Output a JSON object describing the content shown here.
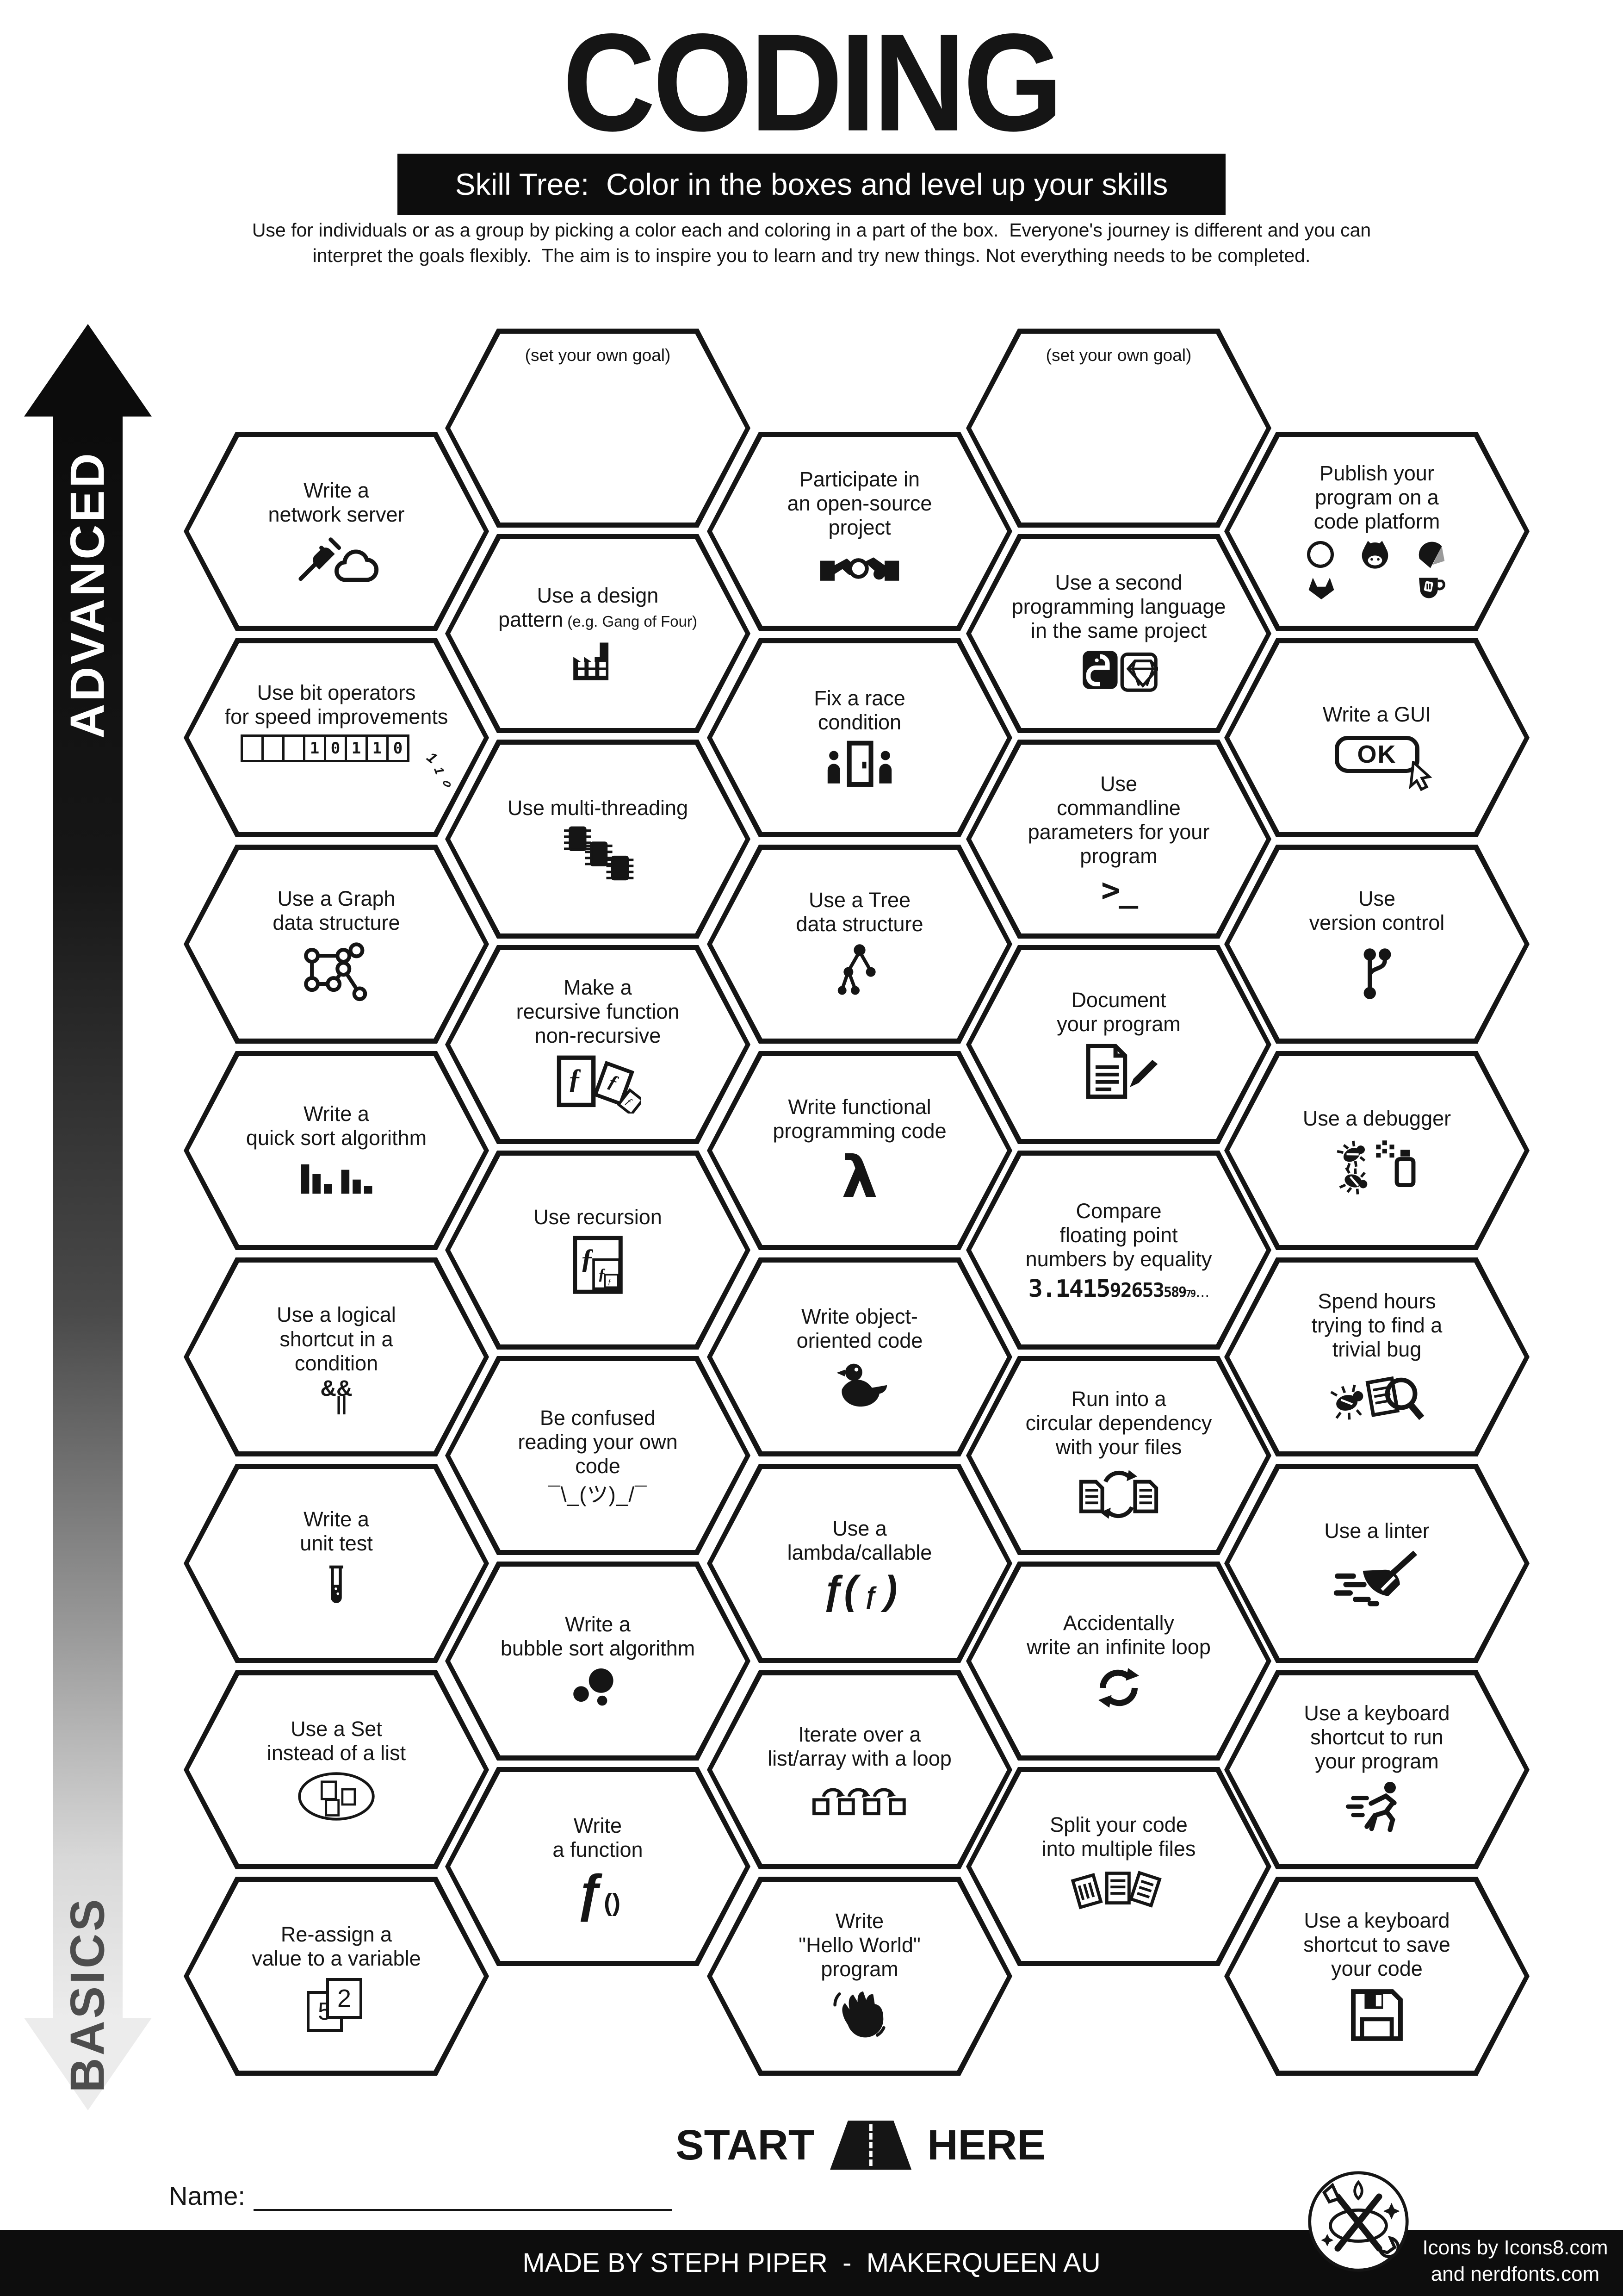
{
  "title": "CODING",
  "subtitle": "Skill Tree:  Color in the boxes and level up your skills",
  "description_line1": "Use for individuals or as a group by picking a color each and coloring in a part of the box.  Everyone's journey is different and you can",
  "description_line2": "interpret the goals flexibly.  The aim is to inspire you to learn and try new things. Not everything needs to be completed.",
  "axis": {
    "advanced": "ADVANCED",
    "basics": "BASICS"
  },
  "start_here": {
    "start": "START",
    "here": "HERE"
  },
  "name_label": "Name:",
  "footer": {
    "made_by": "MADE BY STEPH PIPER  -  MAKERQUEEN AU",
    "credits_line1": "Icons by Icons8.com",
    "credits_line2": "and nerdfonts.com"
  },
  "colors": {
    "ink": "#151515",
    "paper": "#ffffff"
  },
  "hexes": [
    {
      "id": "set-your-own-goal-1",
      "col": "B",
      "row": 0,
      "variant": "goal",
      "label": "(set your own goal)"
    },
    {
      "id": "set-your-own-goal-2",
      "col": "D",
      "row": 0,
      "variant": "goal",
      "label": "(set your own goal)"
    },
    {
      "id": "write-a-network-server",
      "col": "A",
      "row": 0,
      "label": "Write a\nnetwork server",
      "icon": "network-cloud-icon"
    },
    {
      "id": "participate-open-source",
      "col": "C",
      "row": 0,
      "label": "Participate in\nan open-source\nproject",
      "icon": "handshake-icon"
    },
    {
      "id": "publish-code-platform",
      "col": "E",
      "row": 0,
      "label": "Publish your\nprogram on a\ncode platform",
      "icon": "platforms-icon"
    },
    {
      "id": "use-a-design-pattern",
      "col": "B",
      "row": 1,
      "label": "Use a design\npattern",
      "sub": " (e.g. Gang of Four)",
      "icon": "factory-icon"
    },
    {
      "id": "second-language",
      "col": "D",
      "row": 1,
      "label": "Use a second\nprogramming language\nin the same project",
      "icon": "python-ruby-icon"
    },
    {
      "id": "bit-operators",
      "col": "A",
      "row": 1,
      "label": "Use bit operators\nfor speed improvements",
      "icon": "binary-register-icon",
      "icon_text": "10110",
      "icon_text_extra": "110"
    },
    {
      "id": "fix-race-condition",
      "col": "C",
      "row": 1,
      "label": "Fix a race\ncondition",
      "icon": "race-door-icon"
    },
    {
      "id": "write-a-gui",
      "col": "E",
      "row": 1,
      "label": "Write a GUI",
      "icon": "ok-button-icon",
      "icon_text": "OK"
    },
    {
      "id": "multi-threading",
      "col": "B",
      "row": 2,
      "label": "Use multi-threading",
      "icon": "chips-icon"
    },
    {
      "id": "commandline-parameters",
      "col": "D",
      "row": 2,
      "label": "Use\ncommandline\nparameters for your\nprogram",
      "icon": "terminal-icon",
      "icon_text": ">_"
    },
    {
      "id": "graph-data-structure",
      "col": "A",
      "row": 2,
      "label": "Use a Graph\ndata structure",
      "icon": "graph-icon"
    },
    {
      "id": "tree-data-structure",
      "col": "C",
      "row": 2,
      "label": "Use a Tree\ndata structure",
      "icon": "tree-icon"
    },
    {
      "id": "version-control",
      "col": "E",
      "row": 2,
      "label": "Use\nversion control",
      "icon": "git-branch-icon"
    },
    {
      "id": "recursive-to-nonrecursive",
      "col": "B",
      "row": 3,
      "label": "Make a\nrecursive function\nnon-recursive",
      "icon": "recursive-pages-icon",
      "icon_text": "ƒ"
    },
    {
      "id": "document-your-program",
      "col": "D",
      "row": 3,
      "label": "Document\nyour program",
      "icon": "doc-pencil-icon"
    },
    {
      "id": "quick-sort",
      "col": "A",
      "row": 3,
      "label": "Write a\nquick sort algorithm",
      "icon": "sort-bars-icon"
    },
    {
      "id": "functional-programming",
      "col": "C",
      "row": 3,
      "label": "Write functional\nprogramming code",
      "icon": "lambda-icon",
      "icon_text": "λ"
    },
    {
      "id": "use-a-debugger",
      "col": "E",
      "row": 3,
      "label": "Use a debugger",
      "icon": "debugger-icon"
    },
    {
      "id": "use-recursion",
      "col": "B",
      "row": 4,
      "label": "Use recursion",
      "icon": "nested-f-icon",
      "icon_text": "ƒ"
    },
    {
      "id": "compare-floating-point",
      "col": "D",
      "row": 4,
      "label": "Compare\nfloating point\nnumbers by equality",
      "icon": "pi-digits-icon",
      "icon_text": "3.14159265358979..."
    },
    {
      "id": "logical-shortcut",
      "col": "A",
      "row": 4,
      "label": "Use a logical\nshortcut in a\ncondition",
      "icon": "logical-ops-icon",
      "icon_text": "&&",
      "icon_text_extra": "||"
    },
    {
      "id": "object-oriented-code",
      "col": "C",
      "row": 4,
      "label": "Write object-\noriented code",
      "icon": "duck-icon"
    },
    {
      "id": "spend-hours-trivial-bug",
      "col": "E",
      "row": 4,
      "label": "Spend hours\ntrying to find a\ntrivial bug",
      "icon": "bug-magnifier-icon"
    },
    {
      "id": "confused-own-code",
      "col": "B",
      "row": 5,
      "label": "Be confused\nreading your own\ncode",
      "icon": "shrug-kaomoji-icon",
      "icon_text": "¯\\_(ツ)_/¯"
    },
    {
      "id": "circular-dependency",
      "col": "D",
      "row": 5,
      "label": "Run into a\ncircular dependency\nwith your files",
      "icon": "circular-docs-icon"
    },
    {
      "id": "write-a-unit-test",
      "col": "A",
      "row": 5,
      "label": "Write a\nunit test",
      "icon": "test-tube-icon"
    },
    {
      "id": "lambda-callable",
      "col": "C",
      "row": 5,
      "label": "Use a\nlambda/callable",
      "icon": "lambda-call-icon",
      "icon_text": "ƒ( ƒ )"
    },
    {
      "id": "use-a-linter",
      "col": "E",
      "row": 5,
      "label": "Use a linter",
      "icon": "broom-icon"
    },
    {
      "id": "bubble-sort",
      "col": "B",
      "row": 6,
      "label": "Write a\nbubble sort algorithm",
      "icon": "bubbles-icon"
    },
    {
      "id": "infinite-loop",
      "col": "D",
      "row": 6,
      "label": "Accidentally\nwrite an infinite loop",
      "icon": "infinite-loop-icon"
    },
    {
      "id": "use-a-set",
      "col": "A",
      "row": 6,
      "label": "Use a Set\ninstead of a list",
      "icon": "set-icon"
    },
    {
      "id": "iterate-with-loop",
      "col": "C",
      "row": 6,
      "label": "Iterate over a\nlist/array with a loop",
      "icon": "loop-squares-icon"
    },
    {
      "id": "shortcut-run-program",
      "col": "E",
      "row": 6,
      "label": "Use a keyboard\nshortcut to run\nyour program",
      "icon": "runner-icon"
    },
    {
      "id": "write-a-function",
      "col": "B",
      "row": 7,
      "label": "Write\na function",
      "icon": "function-call-icon",
      "icon_text": "ƒ()"
    },
    {
      "id": "split-your-code",
      "col": "D",
      "row": 7,
      "label": "Split your code\ninto multiple files",
      "icon": "split-files-icon"
    },
    {
      "id": "reassign-variable",
      "col": "A",
      "row": 7,
      "label": "Re-assign a\nvalue to a variable",
      "icon": "reassign-cards-icon",
      "icon_text": "5",
      "icon_text_extra": "2"
    },
    {
      "id": "hello-world",
      "col": "C",
      "row": 7,
      "label": "Write\n\"Hello World\"\nprogram",
      "icon": "wave-hand-icon"
    },
    {
      "id": "shortcut-save-code",
      "col": "E",
      "row": 7,
      "label": "Use a keyboard\nshortcut to save\nyour code",
      "icon": "floppy-icon"
    }
  ]
}
